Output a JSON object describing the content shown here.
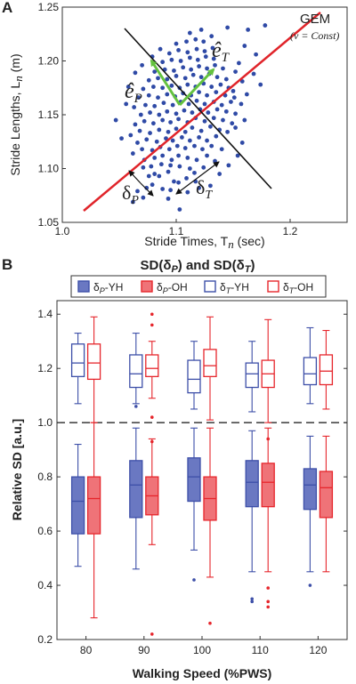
{
  "chart_data": [
    {
      "type": "scatter",
      "panel_label": "A",
      "xlabel": "Stride Times, T",
      "xlabel_sub": "n",
      "xlabel_unit": " (sec)",
      "ylabel": "Stride Lengths, L",
      "ylabel_sub": "n",
      "ylabel_unit": " (m)",
      "xlim": [
        1.0,
        1.25
      ],
      "ylim": [
        1.05,
        1.25
      ],
      "x_ticks": [
        "1.0",
        "1.1",
        "1.2"
      ],
      "y_ticks": [
        "1.05",
        "1.10",
        "1.15",
        "1.20",
        "1.25"
      ],
      "annotations": {
        "gem": "GEM",
        "gem_sub": "(ν = Const)",
        "e_p": "ê",
        "e_p_sub": "P",
        "e_t": "ê",
        "e_t_sub": "T",
        "delta_p": "δ",
        "delta_p_sub": "P",
        "delta_t": "δ",
        "delta_t_sub": "T"
      },
      "points": [
        [
          1.062,
          1.069
        ],
        [
          1.071,
          1.073
        ],
        [
          1.066,
          1.079
        ],
        [
          1.074,
          1.082
        ],
        [
          1.079,
          1.085
        ],
        [
          1.088,
          1.081
        ],
        [
          1.103,
          1.062
        ],
        [
          1.093,
          1.072
        ],
        [
          1.098,
          1.088
        ],
        [
          1.076,
          1.093
        ],
        [
          1.081,
          1.095
        ],
        [
          1.085,
          1.093
        ],
        [
          1.093,
          1.097
        ],
        [
          1.071,
          1.101
        ],
        [
          1.078,
          1.102
        ],
        [
          1.087,
          1.104
        ],
        [
          1.095,
          1.103
        ],
        [
          1.103,
          1.102
        ],
        [
          1.112,
          1.1
        ],
        [
          1.116,
          1.096
        ],
        [
          1.124,
          1.101
        ],
        [
          1.072,
          1.108
        ],
        [
          1.081,
          1.11
        ],
        [
          1.088,
          1.112
        ],
        [
          1.096,
          1.108
        ],
        [
          1.102,
          1.112
        ],
        [
          1.11,
          1.11
        ],
        [
          1.118,
          1.108
        ],
        [
          1.127,
          1.112
        ],
        [
          1.134,
          1.107
        ],
        [
          1.062,
          1.114
        ],
        [
          1.07,
          1.118
        ],
        [
          1.079,
          1.117
        ],
        [
          1.086,
          1.12
        ],
        [
          1.094,
          1.118
        ],
        [
          1.101,
          1.121
        ],
        [
          1.108,
          1.119
        ],
        [
          1.116,
          1.121
        ],
        [
          1.123,
          1.118
        ],
        [
          1.131,
          1.121
        ],
        [
          1.14,
          1.118
        ],
        [
          1.066,
          1.124
        ],
        [
          1.074,
          1.127
        ],
        [
          1.083,
          1.125
        ],
        [
          1.091,
          1.128
        ],
        [
          1.097,
          1.126
        ],
        [
          1.105,
          1.129
        ],
        [
          1.112,
          1.126
        ],
        [
          1.12,
          1.129
        ],
        [
          1.127,
          1.126
        ],
        [
          1.135,
          1.13
        ],
        [
          1.06,
          1.131
        ],
        [
          1.068,
          1.135
        ],
        [
          1.077,
          1.133
        ],
        [
          1.085,
          1.136
        ],
        [
          1.093,
          1.134
        ],
        [
          1.1,
          1.137
        ],
        [
          1.108,
          1.134
        ],
        [
          1.114,
          1.138
        ],
        [
          1.122,
          1.135
        ],
        [
          1.13,
          1.139
        ],
        [
          1.138,
          1.136
        ],
        [
          1.145,
          1.134
        ],
        [
          1.064,
          1.141
        ],
        [
          1.072,
          1.144
        ],
        [
          1.08,
          1.142
        ],
        [
          1.088,
          1.145
        ],
        [
          1.095,
          1.143
        ],
        [
          1.102,
          1.146
        ],
        [
          1.11,
          1.143
        ],
        [
          1.117,
          1.147
        ],
        [
          1.125,
          1.144
        ],
        [
          1.133,
          1.147
        ],
        [
          1.141,
          1.145
        ],
        [
          1.149,
          1.142
        ],
        [
          1.069,
          1.15
        ],
        [
          1.077,
          1.152
        ],
        [
          1.085,
          1.15
        ],
        [
          1.092,
          1.153
        ],
        [
          1.1,
          1.151
        ],
        [
          1.107,
          1.154
        ],
        [
          1.114,
          1.152
        ],
        [
          1.121,
          1.155
        ],
        [
          1.128,
          1.152
        ],
        [
          1.136,
          1.155
        ],
        [
          1.144,
          1.153
        ],
        [
          1.152,
          1.151
        ],
        [
          1.063,
          1.157
        ],
        [
          1.073,
          1.159
        ],
        [
          1.081,
          1.158
        ],
        [
          1.089,
          1.161
        ],
        [
          1.097,
          1.159
        ],
        [
          1.104,
          1.162
        ],
        [
          1.111,
          1.16
        ],
        [
          1.118,
          1.163
        ],
        [
          1.125,
          1.16
        ],
        [
          1.133,
          1.162
        ],
        [
          1.14,
          1.159
        ],
        [
          1.148,
          1.162
        ],
        [
          1.157,
          1.16
        ],
        [
          1.067,
          1.166
        ],
        [
          1.076,
          1.168
        ],
        [
          1.084,
          1.166
        ],
        [
          1.092,
          1.169
        ],
        [
          1.099,
          1.167
        ],
        [
          1.106,
          1.17
        ],
        [
          1.113,
          1.168
        ],
        [
          1.12,
          1.171
        ],
        [
          1.127,
          1.168
        ],
        [
          1.135,
          1.171
        ],
        [
          1.143,
          1.168
        ],
        [
          1.151,
          1.166
        ],
        [
          1.071,
          1.174
        ],
        [
          1.08,
          1.176
        ],
        [
          1.088,
          1.175
        ],
        [
          1.096,
          1.177
        ],
        [
          1.103,
          1.175
        ],
        [
          1.11,
          1.178
        ],
        [
          1.117,
          1.176
        ],
        [
          1.124,
          1.179
        ],
        [
          1.131,
          1.176
        ],
        [
          1.139,
          1.178
        ],
        [
          1.146,
          1.175
        ],
        [
          1.076,
          1.182
        ],
        [
          1.084,
          1.184
        ],
        [
          1.092,
          1.183
        ],
        [
          1.1,
          1.186
        ],
        [
          1.108,
          1.184
        ],
        [
          1.115,
          1.187
        ],
        [
          1.122,
          1.185
        ],
        [
          1.129,
          1.188
        ],
        [
          1.136,
          1.185
        ],
        [
          1.144,
          1.183
        ],
        [
          1.081,
          1.19
        ],
        [
          1.09,
          1.192
        ],
        [
          1.098,
          1.191
        ],
        [
          1.106,
          1.194
        ],
        [
          1.113,
          1.192
        ],
        [
          1.12,
          1.195
        ],
        [
          1.127,
          1.193
        ],
        [
          1.134,
          1.196
        ],
        [
          1.141,
          1.193
        ],
        [
          1.088,
          1.199
        ],
        [
          1.096,
          1.201
        ],
        [
          1.104,
          1.2
        ],
        [
          1.112,
          1.203
        ],
        [
          1.119,
          1.201
        ],
        [
          1.126,
          1.204
        ],
        [
          1.133,
          1.202
        ],
        [
          1.094,
          1.207
        ],
        [
          1.102,
          1.21
        ],
        [
          1.11,
          1.208
        ],
        [
          1.118,
          1.211
        ],
        [
          1.125,
          1.209
        ],
        [
          1.132,
          1.212
        ],
        [
          1.1,
          1.216
        ],
        [
          1.109,
          1.218
        ],
        [
          1.117,
          1.22
        ],
        [
          1.124,
          1.218
        ],
        [
          1.131,
          1.223
        ],
        [
          1.112,
          1.226
        ],
        [
          1.122,
          1.229
        ],
        [
          1.145,
          1.231
        ],
        [
          1.163,
          1.229
        ],
        [
          1.178,
          1.233
        ],
        [
          1.16,
          1.214
        ],
        [
          1.17,
          1.206
        ],
        [
          1.155,
          1.198
        ],
        [
          1.168,
          1.188
        ],
        [
          1.174,
          1.178
        ],
        [
          1.15,
          1.172
        ],
        [
          1.162,
          1.169
        ],
        [
          1.158,
          1.181
        ],
        [
          1.152,
          1.19
        ],
        [
          1.047,
          1.145
        ],
        [
          1.052,
          1.128
        ],
        [
          1.056,
          1.16
        ],
        [
          1.058,
          1.176
        ],
        [
          1.064,
          1.189
        ],
        [
          1.07,
          1.196
        ],
        [
          1.079,
          1.204
        ],
        [
          1.086,
          1.211
        ],
        [
          1.13,
          1.084
        ],
        [
          1.138,
          1.095
        ],
        [
          1.146,
          1.103
        ],
        [
          1.154,
          1.112
        ],
        [
          1.158,
          1.124
        ],
        [
          1.152,
          1.138
        ],
        [
          1.16,
          1.145
        ],
        [
          1.102,
          1.087
        ],
        [
          1.109,
          1.091
        ],
        [
          1.117,
          1.088
        ],
        [
          1.095,
          1.08
        ],
        [
          1.11,
          1.078
        ],
        [
          1.12,
          1.082
        ]
      ]
    },
    {
      "type": "box",
      "panel_label": "B",
      "title": "SD(δ",
      "title_sub1": "P",
      "title_mid": ") and SD(δ",
      "title_sub2": "T",
      "title_end": ")",
      "xlabel": "Walking Speed (%PWS)",
      "ylabel": "Relative SD [a.u.]",
      "ylim": [
        0.2,
        1.45
      ],
      "y_ticks": [
        "0.2",
        "0.4",
        "0.6",
        "0.8",
        "1.0",
        "1.2",
        "1.4"
      ],
      "categories": [
        "80",
        "90",
        "100",
        "110",
        "120"
      ],
      "reference_line": 1.0,
      "colors": {
        "blue": "#3d4fa8",
        "red": "#e6262c",
        "blue_fill": "#6a78c2",
        "red_fill": "#ef7378",
        "green": "#64c23f",
        "line_red": "#e0242a"
      },
      "legend": [
        {
          "label": "δ",
          "sub": "P",
          "suffix": "-YH"
        },
        {
          "label": "δ",
          "sub": "P",
          "suffix": "-OH"
        },
        {
          "label": "δ",
          "sub": "T",
          "suffix": "-YH"
        },
        {
          "label": "δ",
          "sub": "T",
          "suffix": "-OH"
        }
      ],
      "series": [
        {
          "name": "δP-YH",
          "boxes": [
            {
              "whislo": 0.47,
              "q1": 0.59,
              "med": 0.71,
              "q3": 0.8,
              "whishi": 0.92,
              "fliers": []
            },
            {
              "whislo": 0.46,
              "q1": 0.65,
              "med": 0.77,
              "q3": 0.86,
              "whishi": 0.98,
              "fliers": []
            },
            {
              "whislo": 0.53,
              "q1": 0.71,
              "med": 0.8,
              "q3": 0.87,
              "whishi": 0.98,
              "fliers": [
                0.42
              ]
            },
            {
              "whislo": 0.45,
              "q1": 0.69,
              "med": 0.78,
              "q3": 0.86,
              "whishi": 0.97,
              "fliers": [
                0.35,
                0.34
              ]
            },
            {
              "whislo": 0.45,
              "q1": 0.68,
              "med": 0.77,
              "q3": 0.83,
              "whishi": 0.95,
              "fliers": [
                0.4
              ]
            }
          ]
        },
        {
          "name": "δP-OH",
          "boxes": [
            {
              "whislo": 0.28,
              "q1": 0.59,
              "med": 0.72,
              "q3": 0.8,
              "whishi": 1.0,
              "fliers": []
            },
            {
              "whislo": 0.55,
              "q1": 0.66,
              "med": 0.73,
              "q3": 0.8,
              "whishi": 0.94,
              "fliers": [
                0.22
              ]
            },
            {
              "whislo": 0.43,
              "q1": 0.64,
              "med": 0.72,
              "q3": 0.8,
              "whishi": 0.98,
              "fliers": [
                0.26
              ]
            },
            {
              "whislo": 0.45,
              "q1": 0.69,
              "med": 0.78,
              "q3": 0.85,
              "whishi": 0.98,
              "fliers": [
                0.39,
                0.34,
                0.32
              ]
            },
            {
              "whislo": 0.45,
              "q1": 0.65,
              "med": 0.76,
              "q3": 0.82,
              "whishi": 0.95,
              "fliers": []
            }
          ]
        },
        {
          "name": "δT-YH",
          "boxes": [
            {
              "whislo": 1.07,
              "q1": 1.17,
              "med": 1.22,
              "q3": 1.29,
              "whishi": 1.33,
              "fliers": []
            },
            {
              "whislo": 1.07,
              "q1": 1.13,
              "med": 1.18,
              "q3": 1.25,
              "whishi": 1.33,
              "fliers": [
                1.06
              ]
            },
            {
              "whislo": 1.05,
              "q1": 1.11,
              "med": 1.16,
              "q3": 1.23,
              "whishi": 1.3,
              "fliers": []
            },
            {
              "whislo": 1.04,
              "q1": 1.13,
              "med": 1.18,
              "q3": 1.22,
              "whishi": 1.3,
              "fliers": []
            },
            {
              "whislo": 1.07,
              "q1": 1.14,
              "med": 1.18,
              "q3": 1.24,
              "whishi": 1.35,
              "fliers": []
            }
          ]
        },
        {
          "name": "δT-OH",
          "boxes": [
            {
              "whislo": 1.0,
              "q1": 1.16,
              "med": 1.22,
              "q3": 1.29,
              "whishi": 1.39,
              "fliers": []
            },
            {
              "whislo": 1.09,
              "q1": 1.17,
              "med": 1.2,
              "q3": 1.25,
              "whishi": 1.3,
              "fliers": [
                1.4,
                1.36,
                1.02,
                0.93
              ]
            },
            {
              "whislo": 1.01,
              "q1": 1.17,
              "med": 1.21,
              "q3": 1.27,
              "whishi": 1.39,
              "fliers": []
            },
            {
              "whislo": 1.0,
              "q1": 1.13,
              "med": 1.18,
              "q3": 1.23,
              "whishi": 1.38,
              "fliers": [
                0.94
              ]
            },
            {
              "whislo": 1.05,
              "q1": 1.14,
              "med": 1.19,
              "q3": 1.25,
              "whishi": 1.34,
              "fliers": []
            }
          ]
        }
      ]
    }
  ]
}
